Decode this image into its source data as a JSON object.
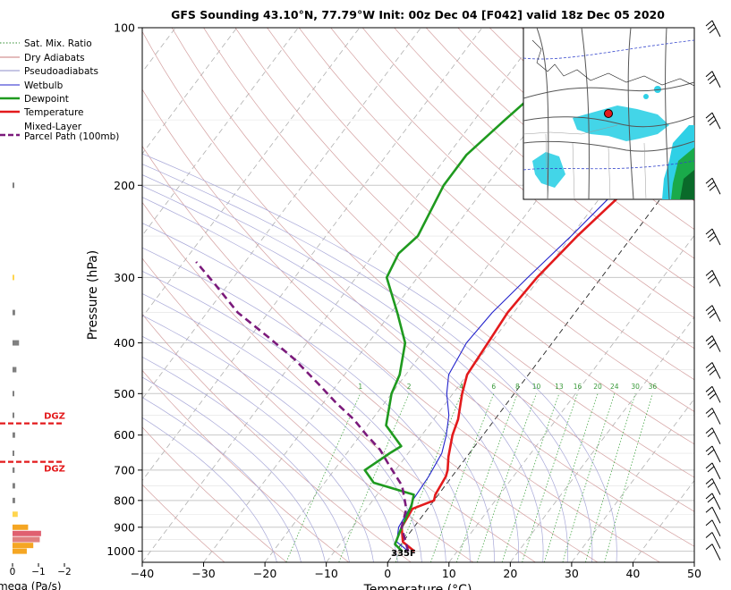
{
  "chart_data": {
    "type": "line",
    "title": "GFS Sounding 43.10°N, 77.79°W Init: 00z Dec 04 [F042] valid 18z Dec 05 2020",
    "xlabel": "Temperature (°C)",
    "ylabel": "Pressure (hPa)",
    "x_ticks": [
      -40,
      -30,
      -20,
      -10,
      0,
      10,
      20,
      30,
      40,
      50
    ],
    "x_tick_labels": [
      "−40",
      "−30",
      "−20",
      "−10",
      "0",
      "10",
      "20",
      "30",
      "40",
      "50"
    ],
    "xlim": [
      -40,
      50
    ],
    "y_ticks": [
      100,
      200,
      300,
      400,
      500,
      600,
      700,
      800,
      900,
      1000
    ],
    "y_tick_labels": [
      "100",
      "200",
      "300",
      "400",
      "500",
      "600",
      "700",
      "800",
      "900",
      "1000"
    ],
    "ylim": [
      1050,
      100
    ],
    "y_scale": "log",
    "skew": "skew-T",
    "grid": true,
    "legend_position": "top-left",
    "legend": [
      {
        "name": "Sat. Mix. Ratio",
        "color": "#2e8b2e",
        "style": "dotted"
      },
      {
        "name": "Dry Adiabats",
        "color": "#c87878",
        "style": "solid"
      },
      {
        "name": "Pseudoadiabats",
        "color": "#8c8cc8",
        "style": "solid"
      },
      {
        "name": "Wetbulb",
        "color": "#2222cc",
        "style": "solid"
      },
      {
        "name": "Dewpoint",
        "color": "#1f9a1f",
        "style": "solid"
      },
      {
        "name": "Temperature",
        "color": "#e31a1c",
        "style": "solid"
      },
      {
        "name": "Mixed-Layer",
        "color": "#7b1a7b",
        "style": "dashed"
      },
      {
        "name": "Parcel Path (100mb)",
        "color": "#7b1a7b",
        "style": "dashed"
      }
    ],
    "mixing_ratio_labels": [
      "1",
      "2",
      "4",
      "6",
      "8",
      "10",
      "13",
      "16",
      "20",
      "24",
      "30",
      "36"
    ],
    "mixing_ratio_values": [
      1,
      2,
      4,
      6,
      8,
      10,
      13,
      16,
      20,
      24,
      30,
      36
    ],
    "series": [
      {
        "name": "Temperature",
        "color": "#e31a1c",
        "points": [
          [
            3,
            1000
          ],
          [
            0,
            960
          ],
          [
            -2,
            900
          ],
          [
            -2.5,
            830
          ],
          [
            0,
            800
          ],
          [
            -0.5,
            780
          ],
          [
            -1,
            720
          ],
          [
            -1.5,
            700
          ],
          [
            -3,
            660
          ],
          [
            -5,
            600
          ],
          [
            -6,
            560
          ],
          [
            -8.5,
            500
          ],
          [
            -10,
            460
          ],
          [
            -10.5,
            400
          ],
          [
            -11,
            350
          ],
          [
            -10.5,
            300
          ],
          [
            -9,
            250
          ],
          [
            -7,
            210
          ],
          [
            -6,
            200
          ],
          [
            -5,
            180
          ],
          [
            -3,
            150
          ],
          [
            -1,
            120
          ],
          [
            1,
            100
          ]
        ]
      },
      {
        "name": "Wetbulb",
        "color": "#2222cc",
        "points": [
          [
            2,
            1000
          ],
          [
            -1,
            960
          ],
          [
            -2.5,
            900
          ],
          [
            -3,
            830
          ],
          [
            -3.5,
            800
          ],
          [
            -3.8,
            720
          ],
          [
            -4.5,
            650
          ],
          [
            -6,
            600
          ],
          [
            -8,
            550
          ],
          [
            -11,
            500
          ],
          [
            -13,
            460
          ],
          [
            -14,
            400
          ],
          [
            -13.5,
            350
          ],
          [
            -12,
            300
          ],
          [
            -10,
            250
          ],
          [
            -8,
            200
          ],
          [
            -6,
            170
          ],
          [
            -3,
            140
          ],
          [
            -1,
            120
          ],
          [
            0,
            100
          ]
        ]
      },
      {
        "name": "Dewpoint",
        "color": "#1f9a1f",
        "points": [
          [
            1,
            1000
          ],
          [
            -1,
            970
          ],
          [
            -2,
            900
          ],
          [
            -3,
            820
          ],
          [
            -4,
            780
          ],
          [
            -12,
            740
          ],
          [
            -15,
            700
          ],
          [
            -13,
            650
          ],
          [
            -12,
            630
          ],
          [
            -17,
            575
          ],
          [
            -20,
            500
          ],
          [
            -21,
            460
          ],
          [
            -24,
            400
          ],
          [
            -29,
            350
          ],
          [
            -35,
            300
          ],
          [
            -36,
            270
          ],
          [
            -35,
            250
          ],
          [
            -37,
            200
          ],
          [
            -37,
            175
          ],
          [
            -35,
            150
          ],
          [
            -33,
            130
          ],
          [
            -27,
            110
          ],
          [
            -23,
            100
          ]
        ]
      },
      {
        "name": "Mixed-Layer Parcel Path (100mb)",
        "color": "#7b1a7b",
        "points": [
          [
            2,
            1000
          ],
          [
            -2,
            900
          ],
          [
            -3.5,
            830
          ],
          [
            -7,
            750
          ],
          [
            -12,
            680
          ],
          [
            -15,
            640
          ],
          [
            -19,
            600
          ],
          [
            -23,
            560
          ],
          [
            -28,
            520
          ],
          [
            -33,
            480
          ],
          [
            -40,
            430
          ],
          [
            -47,
            390
          ],
          [
            -55,
            350
          ],
          [
            -62,
            310
          ],
          [
            -68,
            280
          ]
        ]
      }
    ],
    "annotations": [
      {
        "text": "335F",
        "color": "#e31a1c"
      }
    ],
    "secondary_panel": {
      "type": "bar",
      "xlabel": "Omega (Pa/s)",
      "x_ticks": [
        0,
        -1,
        -2
      ],
      "x_tick_labels": [
        "0",
        "−1",
        "−2"
      ],
      "dgz_labels": [
        "DGZ",
        "DGZ"
      ],
      "dgz_pressures": [
        570,
        675
      ],
      "bars": [
        {
          "p": 1000,
          "v": -0.55,
          "color": "#f5a623"
        },
        {
          "p": 975,
          "v": -0.8,
          "color": "#f5a623"
        },
        {
          "p": 950,
          "v": -1.05,
          "color": "#e08080"
        },
        {
          "p": 925,
          "v": -1.1,
          "color": "#e06070"
        },
        {
          "p": 900,
          "v": -0.6,
          "color": "#f5a623"
        },
        {
          "p": 850,
          "v": -0.2,
          "color": "#ffd54f"
        },
        {
          "p": 800,
          "v": -0.1,
          "color": "#808080"
        },
        {
          "p": 750,
          "v": -0.1,
          "color": "#808080"
        },
        {
          "p": 700,
          "v": -0.08,
          "color": "#808080"
        },
        {
          "p": 650,
          "v": -0.06,
          "color": "#808080"
        },
        {
          "p": 600,
          "v": -0.1,
          "color": "#808080"
        },
        {
          "p": 550,
          "v": -0.06,
          "color": "#808080"
        },
        {
          "p": 500,
          "v": -0.06,
          "color": "#808080"
        },
        {
          "p": 450,
          "v": -0.15,
          "color": "#808080"
        },
        {
          "p": 400,
          "v": -0.25,
          "color": "#808080"
        },
        {
          "p": 350,
          "v": -0.1,
          "color": "#808080"
        },
        {
          "p": 300,
          "v": -0.06,
          "color": "#ffd54f"
        },
        {
          "p": 200,
          "v": -0.04,
          "color": "#808080"
        }
      ]
    },
    "inset_map": {
      "marker": {
        "color": "#e31a1c"
      }
    }
  }
}
